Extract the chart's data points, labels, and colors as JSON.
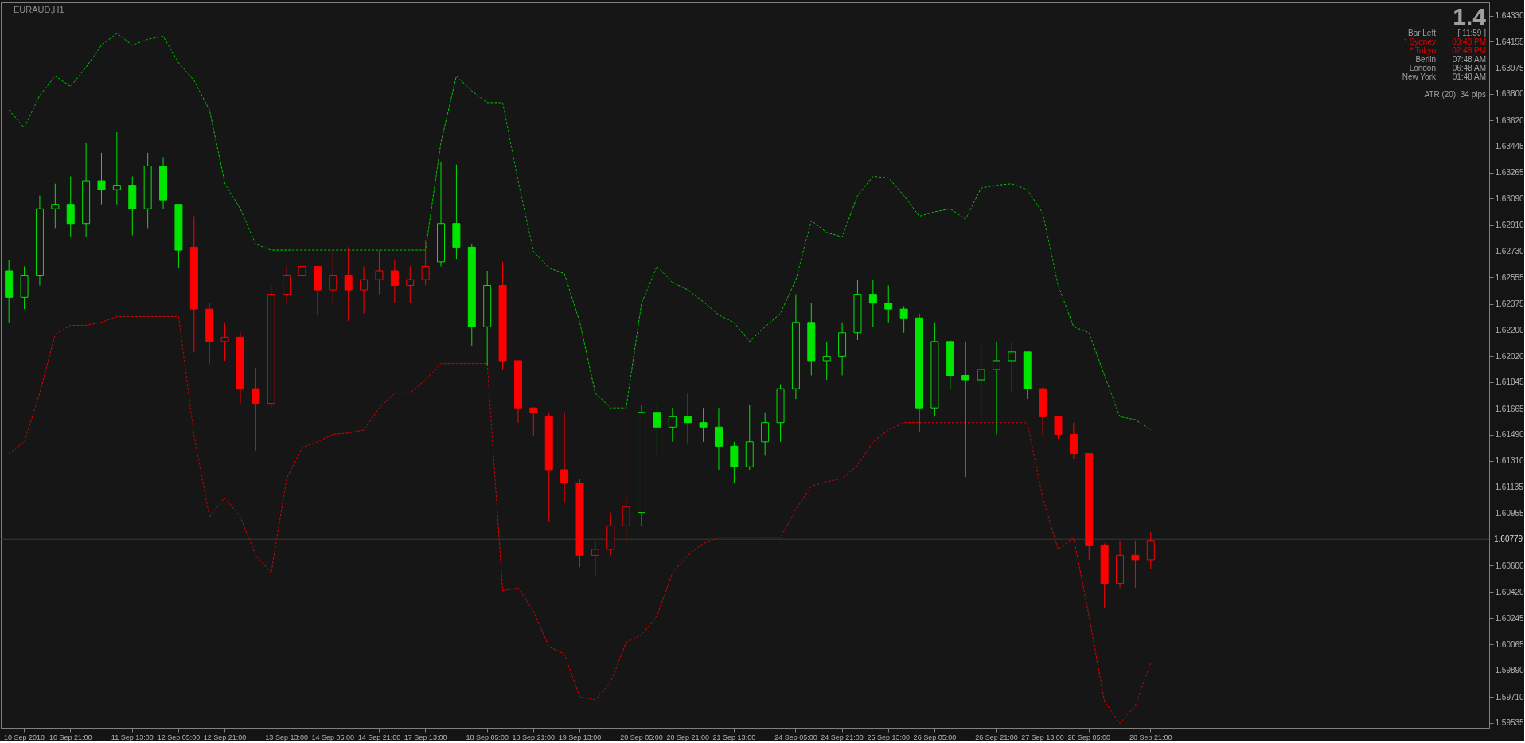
{
  "chart_data": {
    "type": "candlestick",
    "title": "EURAUD,H1",
    "categories": [
      null,
      "10 Sep 2018",
      null,
      null,
      "10 Sep 21:00",
      null,
      null,
      null,
      "11 Sep 13:00",
      null,
      null,
      "12 Sep 05:00",
      null,
      null,
      "12 Sep 21:00",
      null,
      null,
      null,
      "13 Sep 13:00",
      null,
      null,
      "14 Sep 05:00",
      null,
      null,
      "14 Sep 21:00",
      null,
      null,
      "17 Sep 13:00",
      null,
      null,
      null,
      "18 Sep 05:00",
      null,
      null,
      "18 Sep 21:00",
      null,
      null,
      "19 Sep 13:00",
      null,
      null,
      null,
      "20 Sep 05:00",
      null,
      null,
      "20 Sep 21:00",
      null,
      null,
      "21 Sep 13:00",
      null,
      null,
      null,
      "24 Sep 05:00",
      null,
      null,
      "24 Sep 21:00",
      null,
      null,
      "25 Sep 13:00",
      null,
      null,
      "26 Sep 05:00",
      null,
      null,
      null,
      "26 Sep 21:00",
      null,
      null,
      "27 Sep 13:00",
      null,
      null,
      "28 Sep 05:00",
      null,
      null,
      null,
      "28 Sep 21:00"
    ],
    "ohlc": [
      [
        1.626,
        1.6267,
        1.6225,
        1.6242
      ],
      [
        1.6242,
        1.6263,
        1.6234,
        1.6257
      ],
      [
        1.6257,
        1.6311,
        1.625,
        1.6302
      ],
      [
        1.6302,
        1.6319,
        1.6289,
        1.6305
      ],
      [
        1.6305,
        1.6324,
        1.6283,
        1.6292
      ],
      [
        1.6292,
        1.6347,
        1.6283,
        1.6321
      ],
      [
        1.6321,
        1.634,
        1.6305,
        1.6315
      ],
      [
        1.6315,
        1.6354,
        1.6305,
        1.6318
      ],
      [
        1.6318,
        1.6324,
        1.6284,
        1.6302
      ],
      [
        1.6302,
        1.634,
        1.6289,
        1.6331
      ],
      [
        1.6331,
        1.6337,
        1.6302,
        1.6308
      ],
      [
        1.6305,
        1.6305,
        1.6262,
        1.6274
      ],
      [
        1.6276,
        1.6297,
        1.6205,
        1.6234
      ],
      [
        1.6234,
        1.6238,
        1.6197,
        1.6212
      ],
      [
        1.6212,
        1.6225,
        1.6199,
        1.6215
      ],
      [
        1.6215,
        1.6218,
        1.617,
        1.618
      ],
      [
        1.618,
        1.6194,
        1.6138,
        1.617
      ],
      [
        1.617,
        1.625,
        1.6167,
        1.6244
      ],
      [
        1.6244,
        1.6263,
        1.6238,
        1.6257
      ],
      [
        1.6257,
        1.6286,
        1.625,
        1.6263
      ],
      [
        1.6263,
        1.6263,
        1.623,
        1.6247
      ],
      [
        1.6247,
        1.6274,
        1.6238,
        1.6257
      ],
      [
        1.6257,
        1.6276,
        1.6226,
        1.6247
      ],
      [
        1.6247,
        1.6263,
        1.6231,
        1.6254
      ],
      [
        1.6254,
        1.6274,
        1.6244,
        1.626
      ],
      [
        1.626,
        1.6267,
        1.6238,
        1.625
      ],
      [
        1.625,
        1.6263,
        1.6238,
        1.6254
      ],
      [
        1.6254,
        1.6281,
        1.625,
        1.6263
      ],
      [
        1.6266,
        1.6334,
        1.6263,
        1.6292
      ],
      [
        1.6292,
        1.6332,
        1.6268,
        1.6276
      ],
      [
        1.6276,
        1.6278,
        1.6209,
        1.6222
      ],
      [
        1.6222,
        1.626,
        1.6196,
        1.625
      ],
      [
        1.625,
        1.6266,
        1.6193,
        1.6199
      ],
      [
        1.6199,
        1.6199,
        1.6157,
        1.6167
      ],
      [
        1.6167,
        1.6167,
        1.6148,
        1.6164
      ],
      [
        1.6161,
        1.6164,
        1.609,
        1.6125
      ],
      [
        1.6125,
        1.6164,
        1.6103,
        1.6116
      ],
      [
        1.6116,
        1.6119,
        1.6059,
        1.6067
      ],
      [
        1.6067,
        1.6077,
        1.6053,
        1.6071
      ],
      [
        1.6071,
        1.6096,
        1.6067,
        1.6087
      ],
      [
        1.6087,
        1.6109,
        1.6077,
        1.61
      ],
      [
        1.6096,
        1.6169,
        1.6087,
        1.6164
      ],
      [
        1.6164,
        1.617,
        1.6133,
        1.6154
      ],
      [
        1.6154,
        1.6167,
        1.6144,
        1.6161
      ],
      [
        1.6161,
        1.6177,
        1.6143,
        1.6157
      ],
      [
        1.6157,
        1.6167,
        1.6144,
        1.6154
      ],
      [
        1.6154,
        1.6167,
        1.6125,
        1.6141
      ],
      [
        1.6141,
        1.6144,
        1.6116,
        1.6127
      ],
      [
        1.6127,
        1.6169,
        1.6125,
        1.6144
      ],
      [
        1.6144,
        1.6164,
        1.6135,
        1.6157
      ],
      [
        1.6157,
        1.6183,
        1.6144,
        1.618
      ],
      [
        1.618,
        1.6244,
        1.6173,
        1.6225
      ],
      [
        1.6225,
        1.6238,
        1.6189,
        1.6199
      ],
      [
        1.6199,
        1.6212,
        1.6186,
        1.6202
      ],
      [
        1.6202,
        1.6225,
        1.6189,
        1.6218
      ],
      [
        1.6218,
        1.6254,
        1.6213,
        1.6244
      ],
      [
        1.6244,
        1.6254,
        1.6222,
        1.6238
      ],
      [
        1.6238,
        1.625,
        1.6225,
        1.6234
      ],
      [
        1.6234,
        1.6236,
        1.6218,
        1.6228
      ],
      [
        1.6228,
        1.6231,
        1.6151,
        1.6167
      ],
      [
        1.6167,
        1.6225,
        1.6161,
        1.6212
      ],
      [
        1.6212,
        1.6213,
        1.618,
        1.6189
      ],
      [
        1.6189,
        1.6212,
        1.612,
        1.6186
      ],
      [
        1.6186,
        1.6212,
        1.6157,
        1.6193
      ],
      [
        1.6193,
        1.6212,
        1.6149,
        1.6199
      ],
      [
        1.6199,
        1.6212,
        1.6177,
        1.6205
      ],
      [
        1.6205,
        1.6205,
        1.6173,
        1.618
      ],
      [
        1.618,
        1.6181,
        1.6149,
        1.6161
      ],
      [
        1.6161,
        1.6161,
        1.6146,
        1.6149
      ],
      [
        1.6149,
        1.6157,
        1.6132,
        1.6136
      ],
      [
        1.6136,
        1.6136,
        1.6064,
        1.6074
      ],
      [
        1.6074,
        1.6075,
        1.6031,
        1.6048
      ],
      [
        1.6048,
        1.6077,
        1.6045,
        1.6067
      ],
      [
        1.6067,
        1.6077,
        1.6045,
        1.6064
      ],
      [
        1.6064,
        1.6083,
        1.6058,
        1.6077
      ]
    ],
    "colors": [
      "#00e600",
      "#00e600",
      "#00e600",
      "#00e600",
      "#00e600",
      "#00e600",
      "#00e600",
      "#00e600",
      "#00e600",
      "#00e600",
      "#00e600",
      "#00e600",
      "#ff0000",
      "#ff0000",
      "#ff0000",
      "#ff0000",
      "#ff0000",
      "#ff0000",
      "#ff0000",
      "#ff0000",
      "#ff0000",
      "#ff0000",
      "#ff0000",
      "#ff0000",
      "#ff0000",
      "#ff0000",
      "#ff0000",
      "#ff0000",
      "#00e600",
      "#00e600",
      "#00e600",
      "#00e600",
      "#ff0000",
      "#ff0000",
      "#ff0000",
      "#ff0000",
      "#ff0000",
      "#ff0000",
      "#ff0000",
      "#ff0000",
      "#ff0000",
      "#00e600",
      "#00e600",
      "#00e600",
      "#00e600",
      "#00e600",
      "#00e600",
      "#00e600",
      "#00e600",
      "#00e600",
      "#00e600",
      "#00e600",
      "#00e600",
      "#00e600",
      "#00e600",
      "#00e600",
      "#00e600",
      "#00e600",
      "#00e600",
      "#00e600",
      "#00e600",
      "#00e600",
      "#00e600",
      "#00e600",
      "#00e600",
      "#00e600",
      "#00e600",
      "#ff0000",
      "#ff0000",
      "#ff0000",
      "#ff0000",
      "#ff0000",
      "#ff0000",
      "#ff0000",
      "#ff0000"
    ],
    "series": [
      {
        "type": "line",
        "color": "#00c800",
        "line_style": "dashed",
        "values": [
          1.6369,
          1.6357,
          1.6379,
          1.6392,
          1.6385,
          1.6398,
          1.6413,
          1.6421,
          1.6413,
          1.6417,
          1.6419,
          1.6401,
          1.6389,
          1.6369,
          1.6319,
          1.6302,
          1.6278,
          1.6274,
          1.6274,
          1.6274,
          1.6274,
          1.6274,
          1.6274,
          1.6274,
          1.6274,
          1.6274,
          1.6274,
          1.6274,
          1.6347,
          1.6392,
          1.6382,
          1.6374,
          1.6374,
          1.6321,
          1.6273,
          1.6262,
          1.6258,
          1.6225,
          1.6177,
          1.6167,
          1.6167,
          1.6238,
          1.6263,
          1.6252,
          1.6247,
          1.6239,
          1.623,
          1.6225,
          1.6212,
          1.6222,
          1.6231,
          1.6254,
          1.6294,
          1.6286,
          1.6283,
          1.6311,
          1.6324,
          1.6323,
          1.6311,
          1.6297,
          1.63,
          1.6302,
          1.6295,
          1.6316,
          1.6318,
          1.6319,
          1.6315,
          1.6299,
          1.625,
          1.6222,
          1.6218,
          1.6189,
          1.6161,
          1.6159,
          1.6152
        ]
      },
      {
        "type": "line",
        "color": "#e00000",
        "line_style": "dashed",
        "values": [
          1.6136,
          1.6144,
          1.6177,
          1.6217,
          1.6223,
          1.6223,
          1.6225,
          1.6229,
          1.6229,
          1.6229,
          1.6229,
          1.6229,
          1.6148,
          1.6093,
          1.6106,
          1.6093,
          1.6067,
          1.6055,
          1.6119,
          1.614,
          1.6144,
          1.6149,
          1.615,
          1.6152,
          1.6167,
          1.6177,
          1.6177,
          1.6186,
          1.6197,
          1.6197,
          1.6197,
          1.6197,
          1.6043,
          1.6045,
          1.6029,
          1.6005,
          1.6,
          1.5971,
          1.5969,
          1.5981,
          1.6008,
          1.6013,
          1.6026,
          1.6055,
          1.6067,
          1.6075,
          1.6079,
          1.6079,
          1.6079,
          1.6079,
          1.6079,
          1.6098,
          1.6114,
          1.6117,
          1.6119,
          1.6128,
          1.6144,
          1.6152,
          1.6157,
          1.6157,
          1.6157,
          1.6157,
          1.6157,
          1.6157,
          1.6157,
          1.6157,
          1.6157,
          1.6106,
          1.6071,
          1.6079,
          1.6026,
          1.5968,
          1.5953,
          1.5965,
          1.5994
        ]
      }
    ],
    "ylim": [
      1.595,
      1.6442
    ],
    "yticks": [
      {
        "value": 1.6433,
        "label": "1.64330"
      },
      {
        "value": 1.64155,
        "label": "1.64155"
      },
      {
        "value": 1.63975,
        "label": "1.63975"
      },
      {
        "value": 1.638,
        "label": "1.63800"
      },
      {
        "value": 1.6362,
        "label": "1.63620"
      },
      {
        "value": 1.63445,
        "label": "1.63445"
      },
      {
        "value": 1.63265,
        "label": "1.63265"
      },
      {
        "value": 1.6309,
        "label": "1.63090"
      },
      {
        "value": 1.6291,
        "label": "1.62910"
      },
      {
        "value": 1.6273,
        "label": "1.62730"
      },
      {
        "value": 1.62555,
        "label": "1.62555"
      },
      {
        "value": 1.62375,
        "label": "1.62375"
      },
      {
        "value": 1.622,
        "label": "1.62200"
      },
      {
        "value": 1.6202,
        "label": "1.62020"
      },
      {
        "value": 1.61845,
        "label": "1.61845"
      },
      {
        "value": 1.61665,
        "label": "1.61665"
      },
      {
        "value": 1.6149,
        "label": "1.61490"
      },
      {
        "value": 1.6131,
        "label": "1.61310"
      },
      {
        "value": 1.61135,
        "label": "1.61135"
      },
      {
        "value": 1.60955,
        "label": "1.60955"
      },
      {
        "value": 1.606,
        "label": "1.60600"
      },
      {
        "value": 1.6042,
        "label": "1.60420"
      },
      {
        "value": 1.60245,
        "label": "1.60245"
      },
      {
        "value": 1.60065,
        "label": "1.60065"
      },
      {
        "value": 1.5989,
        "label": "1.59890"
      },
      {
        "value": 1.5971,
        "label": "1.59710"
      },
      {
        "value": 1.59535,
        "label": "1.59535"
      }
    ],
    "ref_lines": [
      {
        "axis": "y",
        "value": 1.60779,
        "label": "1.60779",
        "color": "#3a3a3a"
      }
    ],
    "annotations": [
      "1.4",
      "Bar Left",
      "[ 11:59 ]",
      "* Sydney",
      "03:48 PM",
      "* Tokyo",
      "02:48 PM",
      "Berlin",
      "07:48 AM",
      "London",
      "06:48 AM",
      "New York",
      "01:48 AM",
      "ATR (20): 34 pips"
    ]
  }
}
